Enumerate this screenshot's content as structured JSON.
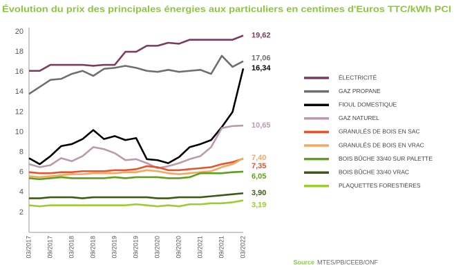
{
  "chart_data": {
    "type": "line",
    "title": "Évolution du prix des principales énergies aux particuliers en centimes d'Euros TTC/kWh PCI",
    "source_label": "Source",
    "source": "MTES/PB/CEEB/ONF",
    "categories": [
      "03/2017",
      null,
      "09/2017",
      null,
      "03/2018",
      null,
      "09/2018",
      null,
      "03/2019",
      null,
      "09/2019",
      null,
      "03/2020",
      null,
      "09/2020",
      null,
      "03/2021",
      null,
      "09/2021",
      null,
      "03/2022"
    ],
    "ylim": [
      0,
      20
    ],
    "yticks": [
      2,
      4,
      6,
      8,
      10,
      12,
      14,
      16,
      18,
      20
    ],
    "grid": false,
    "series": [
      {
        "name": "ÉLECTRICITÉ",
        "color": "#7a3b5e",
        "values": [
          16.1,
          16.1,
          16.7,
          16.7,
          16.7,
          16.7,
          16.6,
          16.7,
          16.7,
          18.0,
          18.0,
          18.6,
          18.6,
          18.9,
          18.8,
          19.2,
          19.2,
          19.2,
          19.2,
          19.2,
          19.62
        ],
        "value_labels": [
          null,
          null,
          null,
          null,
          null,
          null,
          null,
          null,
          null,
          null,
          null,
          null,
          null,
          null,
          null,
          null,
          null,
          null,
          null,
          null,
          "19,62"
        ]
      },
      {
        "name": "GAZ PROPANE",
        "color": "#6e6e6e",
        "values": [
          13.8,
          14.5,
          15.2,
          15.3,
          15.8,
          16.1,
          15.6,
          16.3,
          16.4,
          16.6,
          16.4,
          16.1,
          16.0,
          16.2,
          16.0,
          16.1,
          16.2,
          15.8,
          17.6,
          16.5,
          17.06
        ],
        "value_labels": [
          null,
          null,
          null,
          null,
          null,
          null,
          null,
          null,
          null,
          null,
          null,
          null,
          null,
          null,
          null,
          null,
          null,
          null,
          null,
          null,
          "17,06"
        ]
      },
      {
        "name": "FIOUL DOMESTIQUE",
        "color": "#000000",
        "values": [
          7.4,
          6.8,
          7.6,
          8.6,
          8.8,
          9.3,
          10.2,
          9.3,
          9.6,
          9.2,
          9.4,
          7.3,
          7.2,
          6.9,
          7.5,
          8.5,
          8.8,
          9.2,
          10.5,
          12.0,
          16.34
        ],
        "value_labels": [
          null,
          null,
          null,
          null,
          null,
          null,
          null,
          null,
          null,
          null,
          null,
          null,
          null,
          null,
          null,
          null,
          null,
          null,
          null,
          null,
          "16,34"
        ]
      },
      {
        "name": "GAZ NATUREL",
        "color": "#b99aae",
        "values": [
          6.8,
          6.5,
          6.7,
          7.4,
          7.1,
          7.6,
          8.5,
          8.3,
          7.9,
          7.2,
          7.3,
          6.9,
          6.4,
          6.6,
          6.9,
          7.3,
          7.6,
          8.5,
          10.4,
          10.6,
          10.65
        ],
        "value_labels": [
          null,
          null,
          null,
          null,
          null,
          null,
          null,
          null,
          null,
          null,
          null,
          null,
          null,
          null,
          null,
          null,
          null,
          null,
          null,
          null,
          "10,65"
        ]
      },
      {
        "name": "GRANULÉS DE BOIS EN SAC",
        "color": "#e9522b",
        "values": [
          6.0,
          5.9,
          5.9,
          6.0,
          6.0,
          6.1,
          6.1,
          6.1,
          6.2,
          6.2,
          6.3,
          6.6,
          6.5,
          6.2,
          6.2,
          6.3,
          6.4,
          6.5,
          6.8,
          7.0,
          7.35
        ],
        "value_labels": [
          null,
          null,
          null,
          null,
          null,
          null,
          null,
          null,
          null,
          null,
          null,
          null,
          null,
          null,
          null,
          null,
          null,
          null,
          null,
          null,
          "7,35"
        ]
      },
      {
        "name": "GRANULÉS DE BOIS EN VRAC",
        "color": "#f8a65b",
        "values": [
          5.6,
          5.5,
          5.6,
          5.7,
          5.8,
          5.8,
          5.9,
          5.9,
          5.9,
          6.0,
          6.0,
          6.2,
          6.1,
          5.9,
          5.8,
          5.9,
          6.0,
          6.1,
          6.5,
          6.8,
          7.4
        ],
        "value_labels": [
          null,
          null,
          null,
          null,
          null,
          null,
          null,
          null,
          null,
          null,
          null,
          null,
          null,
          null,
          null,
          null,
          null,
          null,
          null,
          null,
          "7,40"
        ]
      },
      {
        "name": "BOIS BÛCHE 33/40 SUR PALETTE",
        "color": "#5f9e1e",
        "values": [
          5.4,
          5.3,
          5.4,
          5.5,
          5.4,
          5.4,
          5.4,
          5.4,
          5.5,
          5.4,
          5.5,
          5.5,
          5.5,
          5.4,
          5.4,
          5.5,
          5.9,
          5.9,
          5.9,
          6.0,
          6.05
        ],
        "value_labels": [
          null,
          null,
          null,
          null,
          null,
          null,
          null,
          null,
          null,
          null,
          null,
          null,
          null,
          null,
          null,
          null,
          null,
          null,
          null,
          null,
          "6,05"
        ]
      },
      {
        "name": "BOIS BÛCHE 33/40 VRAC",
        "color": "#3d5a14",
        "values": [
          3.4,
          3.4,
          3.5,
          3.5,
          3.5,
          3.4,
          3.5,
          3.5,
          3.5,
          3.5,
          3.5,
          3.5,
          3.4,
          3.4,
          3.5,
          3.5,
          3.5,
          3.6,
          3.7,
          3.8,
          3.9
        ],
        "value_labels": [
          null,
          null,
          null,
          null,
          null,
          null,
          null,
          null,
          null,
          null,
          null,
          null,
          null,
          null,
          null,
          null,
          null,
          null,
          null,
          null,
          "3,90"
        ]
      },
      {
        "name": "PLAQUETTES FORESTIÈRES",
        "color": "#9ccc2e",
        "values": [
          2.7,
          2.6,
          2.7,
          2.7,
          2.7,
          2.7,
          2.7,
          2.7,
          2.7,
          2.7,
          2.8,
          2.7,
          2.6,
          2.7,
          2.6,
          2.8,
          2.8,
          2.9,
          2.9,
          3.0,
          3.19
        ],
        "value_labels": [
          null,
          null,
          null,
          null,
          null,
          null,
          null,
          null,
          null,
          null,
          null,
          null,
          null,
          null,
          null,
          null,
          null,
          null,
          null,
          null,
          "3,19"
        ]
      }
    ]
  }
}
